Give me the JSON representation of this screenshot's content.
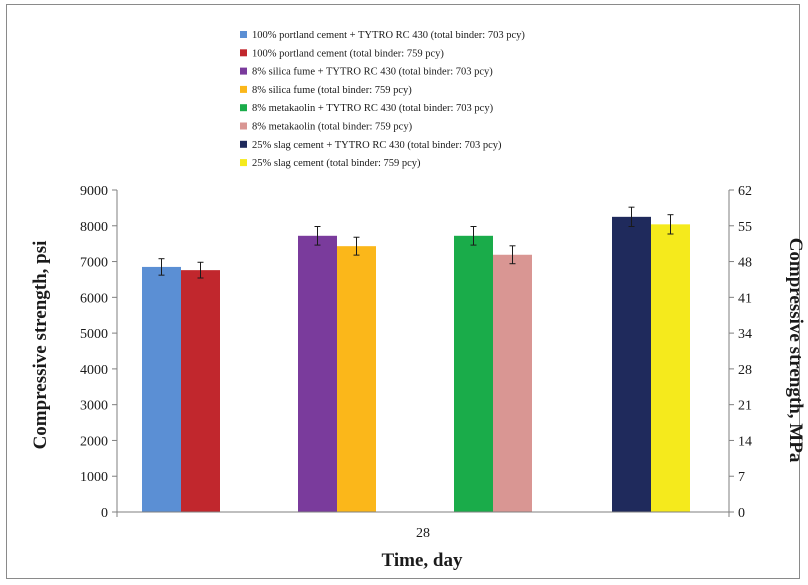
{
  "chart_data": {
    "type": "bar",
    "categories": [
      "28"
    ],
    "xlabel": "Time, day",
    "ylabel": "Compressive strength, psi",
    "y2label": "Compressive strength, MPa",
    "ylim": [
      0,
      9000
    ],
    "yticks": [
      0,
      1000,
      2000,
      3000,
      4000,
      5000,
      6000,
      7000,
      8000,
      9000
    ],
    "y2ticks": [
      "0",
      "7",
      "14",
      "21",
      "28",
      "34",
      "41",
      "48",
      "55",
      "62"
    ],
    "grid": false,
    "legend": "top",
    "error_bars": true,
    "series": [
      {
        "name": "100% portland cement + TYTRO RC 430 (total binder: 703 pcy)",
        "color": "#5b8fd4",
        "values": [
          6850
        ],
        "error": [
          230
        ]
      },
      {
        "name": "100% portland cement (total binder: 759 pcy)",
        "color": "#c1272d",
        "values": [
          6760
        ],
        "error": [
          220
        ]
      },
      {
        "name": "8% silica fume + TYTRO RC 430 (total binder: 703 pcy)",
        "color": "#7a3b9c",
        "values": [
          7720
        ],
        "error": [
          260
        ]
      },
      {
        "name": "8% silica fume (total binder: 759 pcy)",
        "color": "#fbb71a",
        "values": [
          7430
        ],
        "error": [
          250
        ]
      },
      {
        "name": "8% metakaolin + TYTRO RC 430 (total binder: 703 pcy)",
        "color": "#1aac4a",
        "values": [
          7720
        ],
        "error": [
          260
        ]
      },
      {
        "name": "8% metakaolin (total binder: 759 pcy)",
        "color": "#d99693",
        "values": [
          7190
        ],
        "error": [
          250
        ]
      },
      {
        "name": "25% slag cement + TYTRO RC 430 (total binder: 703 pcy)",
        "color": "#1f2a5c",
        "values": [
          8250
        ],
        "error": [
          270
        ]
      },
      {
        "name": "25% slag cement (total binder: 759 pcy)",
        "color": "#f5ea1c",
        "values": [
          8040
        ],
        "error": [
          270
        ]
      }
    ]
  }
}
